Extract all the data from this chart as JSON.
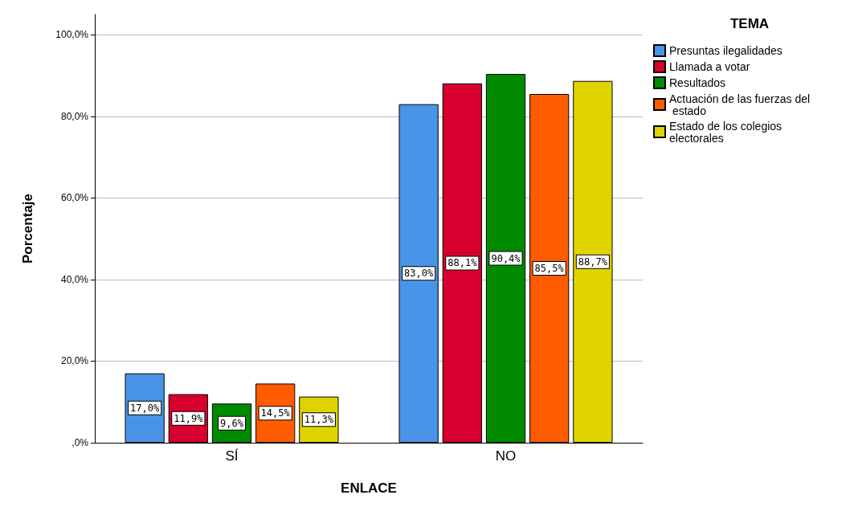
{
  "chart_data": {
    "type": "bar",
    "xlabel": "ENLACE",
    "ylabel": "Porcentaje",
    "legend_title": "TEMA",
    "categories": [
      "SÍ",
      "NO"
    ],
    "series": [
      {
        "name": "Presuntas ilegalidades",
        "color": "#4a94e8",
        "values": [
          17.0,
          83.0
        ],
        "value_labels": [
          "17,0%",
          "83,0%"
        ]
      },
      {
        "name": "Llamada a votar",
        "color": "#d8002e",
        "values": [
          11.9,
          88.1
        ],
        "value_labels": [
          "11,9%",
          "88,1%"
        ]
      },
      {
        "name": "Resultados",
        "color": "#008a00",
        "values": [
          9.6,
          90.4
        ],
        "value_labels": [
          "9,6%",
          "90,4%"
        ]
      },
      {
        "name": "Actuación de las fuerzas del estado",
        "color": "#ff5c00",
        "values": [
          14.5,
          85.5
        ],
        "value_labels": [
          "14,5%",
          "85,5%"
        ]
      },
      {
        "name": "Estado de los colegios electorales",
        "color": "#e0d400",
        "values": [
          11.3,
          88.7
        ],
        "value_labels": [
          "11,3%",
          "88,7%"
        ]
      }
    ],
    "ylim": [
      0,
      105
    ],
    "yticks": [
      {
        "value": 0,
        "label": ",0%"
      },
      {
        "value": 20,
        "label": "20,0%"
      },
      {
        "value": 40,
        "label": "40,0%"
      },
      {
        "value": 60,
        "label": "60,0%"
      },
      {
        "value": 80,
        "label": "80,0%"
      },
      {
        "value": 100,
        "label": "100,0%"
      }
    ],
    "grid": "y",
    "legend": "top right"
  }
}
